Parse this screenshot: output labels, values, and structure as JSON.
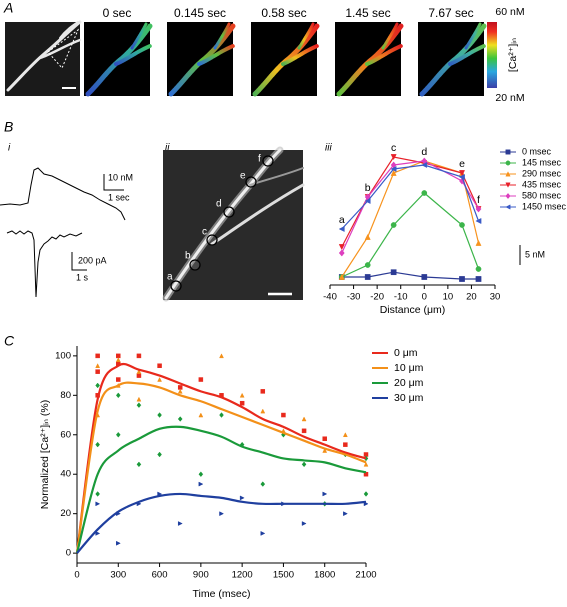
{
  "figure": {
    "panel_labels": [
      "A",
      "B",
      "C"
    ],
    "panel_a": {
      "time_labels": [
        "0 sec",
        "0.145 sec",
        "0.58 sec",
        "1.45 sec",
        "7.67 sec"
      ],
      "colorbar": {
        "max_label": "60 nM",
        "min_label": "20 nM",
        "label": "[Ca²⁺]ᵢₙ"
      }
    },
    "panel_b": {
      "sub_labels": [
        "i",
        "ii",
        "iii"
      ],
      "trace_scale_labels": [
        "10 nM",
        "1 sec",
        "200 pA",
        "1 s"
      ],
      "point_labels": [
        "a",
        "b",
        "c",
        "d",
        "e",
        "f"
      ]
    }
  },
  "chart_data": [
    {
      "type": "line",
      "xlabel": "Distance (μm)",
      "x": [
        -35,
        -24,
        -13,
        0,
        16,
        23
      ],
      "xlim": [
        -40,
        30
      ],
      "xticks": [
        -40,
        -30,
        -20,
        -10,
        0,
        10,
        20,
        30
      ],
      "ylim": [
        -1,
        35
      ],
      "point_labels": [
        "a",
        "b",
        "c",
        "d",
        "e",
        "f"
      ],
      "scale_bar": {
        "value": 5,
        "label": "5 nM"
      },
      "series": [
        {
          "name": "0 msec",
          "color": "#2b3a94",
          "marker": "square",
          "values": [
            1,
            1,
            2.2,
            1,
            0.5,
            0.5
          ]
        },
        {
          "name": "145 msec",
          "color": "#3cb54a",
          "marker": "circle",
          "values": [
            1,
            4,
            14,
            22,
            14,
            3
          ]
        },
        {
          "name": "290 msec",
          "color": "#f7931e",
          "marker": "triangle-up",
          "values": [
            1,
            11,
            27,
            30,
            27,
            9.5
          ]
        },
        {
          "name": "435 msec",
          "color": "#e8212a",
          "marker": "triangle-down",
          "values": [
            8.5,
            21,
            31,
            29.5,
            27,
            18
          ]
        },
        {
          "name": "580 msec",
          "color": "#dd3fbf",
          "marker": "diamond",
          "values": [
            7,
            21,
            29,
            30,
            25,
            18
          ]
        },
        {
          "name": "1450 msec",
          "color": "#3a5bc7",
          "marker": "triangle-left",
          "values": [
            13,
            20,
            28,
            29,
            26,
            15
          ]
        }
      ]
    },
    {
      "type": "line",
      "smooth": true,
      "xlabel": "Time (msec)",
      "ylabel": "Normalized [Ca²⁺]ᵢₙ (%)",
      "x": [
        0,
        150,
        300,
        450,
        600,
        750,
        900,
        1050,
        1200,
        1350,
        1500,
        1650,
        1800,
        1950,
        2100
      ],
      "xlim": [
        0,
        2100
      ],
      "xticks": [
        0,
        300,
        600,
        900,
        1200,
        1500,
        1800,
        2100
      ],
      "ylim": [
        -5,
        105
      ],
      "yticks": [
        0,
        20,
        40,
        60,
        80,
        100
      ],
      "series": [
        {
          "name": "0 μm",
          "color": "#e8291c",
          "marker": "square",
          "values": [
            0,
            78,
            95,
            93,
            90,
            86,
            82,
            79,
            74,
            68,
            64,
            59,
            55,
            51,
            48
          ],
          "scatter_x": [
            150,
            150,
            150,
            300,
            300,
            300,
            450,
            450,
            600,
            750,
            900,
            1050,
            1200,
            1350,
            1500,
            1650,
            1800,
            1950,
            2100,
            2100
          ],
          "scatter_values": [
            100,
            92,
            80,
            100,
            96,
            88,
            100,
            90,
            95,
            84,
            88,
            80,
            76,
            82,
            70,
            62,
            58,
            55,
            50,
            40
          ]
        },
        {
          "name": "10 μm",
          "color": "#f39019",
          "marker": "triangle-up",
          "values": [
            0,
            72,
            85,
            86,
            84,
            80,
            77,
            73,
            69,
            65,
            61,
            57,
            53,
            50,
            46
          ],
          "scatter_x": [
            150,
            150,
            300,
            300,
            450,
            450,
            600,
            750,
            900,
            1050,
            1200,
            1350,
            1500,
            1650,
            1800,
            1950,
            2100
          ],
          "scatter_values": [
            95,
            70,
            98,
            85,
            92,
            78,
            88,
            82,
            70,
            100,
            80,
            72,
            62,
            68,
            52,
            60,
            45
          ]
        },
        {
          "name": "20 μm",
          "color": "#1a9a3a",
          "marker": "diamond",
          "values": [
            0,
            40,
            52,
            58,
            63,
            64,
            62,
            59,
            54,
            51,
            48,
            47,
            46,
            43,
            41
          ],
          "scatter_x": [
            150,
            150,
            150,
            300,
            300,
            450,
            450,
            600,
            600,
            750,
            900,
            1050,
            1200,
            1350,
            1500,
            1650,
            1800,
            1950,
            2100,
            2100
          ],
          "scatter_values": [
            85,
            55,
            30,
            80,
            60,
            75,
            45,
            70,
            50,
            68,
            40,
            70,
            55,
            35,
            60,
            45,
            25,
            50,
            30,
            48
          ]
        },
        {
          "name": "30 μm",
          "color": "#1f3f9f",
          "marker": "triangle-right",
          "values": [
            0,
            12,
            21,
            26,
            29,
            30,
            29,
            28,
            26,
            25,
            25,
            25,
            25,
            25,
            26
          ],
          "scatter_x": [
            150,
            150,
            300,
            300,
            450,
            600,
            750,
            900,
            1050,
            1200,
            1350,
            1500,
            1650,
            1800,
            1950,
            2100
          ],
          "scatter_values": [
            10,
            25,
            20,
            5,
            25,
            30,
            15,
            35,
            20,
            28,
            10,
            25,
            15,
            30,
            20,
            25
          ]
        }
      ]
    }
  ]
}
